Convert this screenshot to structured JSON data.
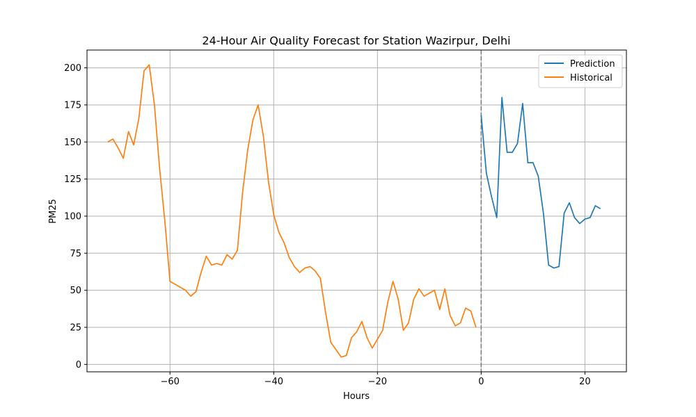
{
  "chart_data": {
    "type": "line",
    "title": "24-Hour Air Quality Forecast for Station Wazirpur, Delhi",
    "xlabel": "Hours",
    "ylabel": "PM25",
    "xlim": [
      -76,
      28
    ],
    "ylim": [
      -5,
      212
    ],
    "xticks": [
      -60,
      -40,
      -20,
      0,
      20
    ],
    "xtick_labels": [
      "−60",
      "−40",
      "−20",
      "0",
      "20"
    ],
    "yticks": [
      0,
      25,
      50,
      75,
      100,
      125,
      150,
      175,
      200
    ],
    "ytick_labels": [
      "0",
      "25",
      "50",
      "75",
      "100",
      "125",
      "150",
      "175",
      "200"
    ],
    "grid": true,
    "legend_position": "top-right",
    "vline": {
      "x": 0,
      "color": "#808080",
      "style": "dashed"
    },
    "series": [
      {
        "name": "Prediction",
        "color": "#1f77b4",
        "x": [
          0,
          1,
          2,
          3,
          4,
          5,
          6,
          7,
          8,
          9,
          10,
          11,
          12,
          13,
          14,
          15,
          16,
          17,
          18,
          19,
          20,
          21,
          22,
          23
        ],
        "y": [
          168,
          129,
          113,
          99,
          180,
          143,
          143,
          149,
          176,
          136,
          136,
          127,
          102,
          67,
          65,
          66,
          102,
          109,
          99,
          95,
          98,
          99,
          107,
          105
        ]
      },
      {
        "name": "Historical",
        "color": "#ff7f0e",
        "x": [
          -72,
          -71,
          -70,
          -69,
          -68,
          -67,
          -66,
          -65,
          -64,
          -63,
          -62,
          -61,
          -60,
          -59,
          -58,
          -57,
          -56,
          -55,
          -54,
          -53,
          -52,
          -51,
          -50,
          -49,
          -48,
          -47,
          -46,
          -45,
          -44,
          -43,
          -42,
          -41,
          -40,
          -39,
          -38,
          -37,
          -36,
          -35,
          -34,
          -33,
          -32,
          -31,
          -30,
          -29,
          -28,
          -27,
          -26,
          -25,
          -24,
          -23,
          -22,
          -21,
          -20,
          -19,
          -18,
          -17,
          -16,
          -15,
          -14,
          -13,
          -12,
          -11,
          -10,
          -9,
          -8,
          -7,
          -6,
          -5,
          -4,
          -3,
          -2,
          -1
        ],
        "y": [
          150,
          152,
          146,
          139,
          157,
          148,
          166,
          198,
          202,
          175,
          132,
          97,
          56,
          54,
          52,
          50,
          46,
          49,
          62,
          73,
          67,
          68,
          67,
          74,
          71,
          77,
          116,
          145,
          165,
          175,
          154,
          123,
          101,
          89,
          82,
          72,
          66,
          62,
          65,
          66,
          63,
          58,
          35,
          15,
          10,
          5,
          6,
          18,
          22,
          29,
          18,
          11,
          17,
          23,
          42,
          56,
          44,
          23,
          28,
          44,
          51,
          46,
          48,
          50,
          37,
          51,
          33,
          26,
          28,
          38,
          36,
          25
        ]
      }
    ]
  }
}
